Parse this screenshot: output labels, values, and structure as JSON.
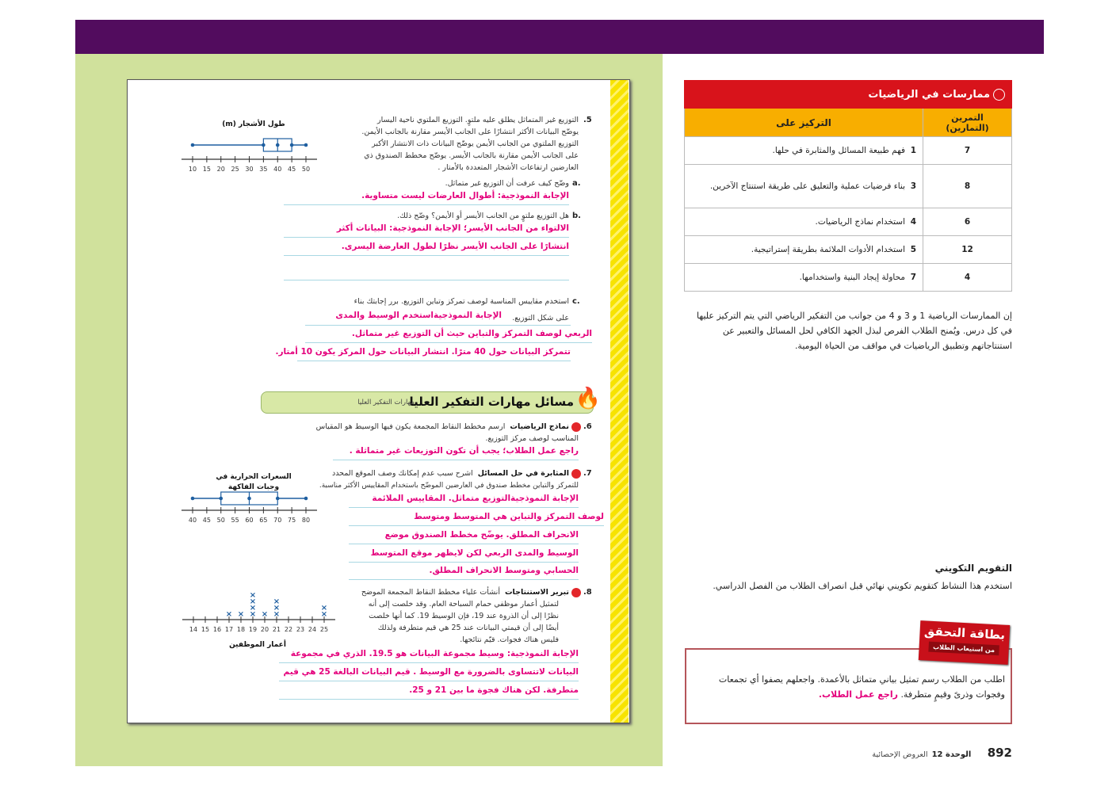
{
  "student_page": {
    "q5": {
      "num": ".5",
      "lines": [
        "التوزيع غير المتماثل يطلق عليه ملتوٍ. التوزيع الملتوي ناحية اليسار",
        "يوضّح البيانات الأكثر انتشارًا على الجانب الأيسر مقارنة بالجانب الأيمن.",
        "التوزيع الملتوي من الجانب الأيمن يوضّح البيانات ذات الانتشار الأكبر",
        "على الجانب الأيمن مقارنة بالجانب الأيسر. يوضّح مخطط الصندوق ذي",
        "العارضين ارتفاعات الأشجار المتعددة بالأمتار ."
      ],
      "a": {
        "label": "a.",
        "text": "وضّح كيف عرفت أن التوزيع غير متماثل.",
        "answer": "الإجابة النموذجية: أطوال العارضات ليست متساوية."
      },
      "b": {
        "label": "b.",
        "text": "هل التوزيع ملتوٍ من الجانب الأيسر أو الأيمن؟ وضّح ذلك.",
        "answers": [
          "الالتواء من الجانب الأيسر؛ الإجابة النموذجية: البيانات أكثر",
          "انتشارًا على الجانب الأيسر نظرًا لطول العارضة اليسرى."
        ]
      },
      "c": {
        "label": "c.",
        "text1": "استخدم مقاييس المناسبة لوصف تمركز وتباين التوزيع. برر إجابتك بناء",
        "text2": "على شكل التوزيع.",
        "answers": [
          "الإجابة النموذجيةاستخدم الوسيط والمدى",
          "الربعي لوصف التمركز والتباين حيث أن التوزيع غير متماثل.",
          "تتمركز البيانات حول 40 مترًا. انتشار البيانات حول المركز يكون 10 أمتار."
        ]
      }
    },
    "hots": {
      "title": "مسائل مهارات التفكير العليا",
      "subtitle": "مهارات التفكير العليا",
      "icon": "flame-icon"
    },
    "q6": {
      "num": ".6",
      "tag": "نماذج الرياضيات",
      "lines": [
        "ارسم مخطط النقاط المجمعة يكون فيها الوسيط هو المقياس",
        "المناسب لوصف مركز التوزيع."
      ],
      "answer": "راجع عمل الطلاب؛ يجب أن تكون التوزيعات غير متماثلة ."
    },
    "q7": {
      "num": ".7",
      "tag": "المثابرة في حل المسائل",
      "lines": [
        "اشرح سبب عدم إمكانك وصف الموقع المحدد",
        "للتمركز والتباين مخطط صندوق في العارضين الموضّح باستخدام المقاييس الأكثر مناسبة."
      ],
      "answers": [
        "الإجابة النموذجيةالتوزيع متماثل. المقاييس الملائمة",
        "لوصف التمركز والتباين هي المتوسط ومتوسط",
        "الانحراف المطلق. يوضّح مخطط الصندوق موضع",
        "الوسيط والمدى الربعي لكن لايظهر موقع المتوسط",
        "الحسابي ومتوسط الانحراف المطلق."
      ]
    },
    "q8": {
      "num": ".8",
      "tag": "تبرير الاستنتاجات",
      "lines": [
        "أنشأت علياء مخطط النقاط المجمعة الموضح",
        "لتمثيل أعمار موظفي حمام السباحة العام. وقد خلصت إلى أنه",
        "نظرًا إلى أن الذروة عند 19، فإن الوسيط 19. كما أنها خلصت",
        "أيضًا إلى أن قيمتي البيانات عند 25 هي قيم متطرفة ولذلك",
        "فليس هناك فجوات. قيّم نتائجها."
      ],
      "answers": [
        "الإجابة النموذجية: وسيط مجموعة البيانات هو 19.5. الذري في مجموعة",
        "البيانات لاتتساوى بالضرورة مع الوسيط . قيم البيانات البالغة 25 هي قيم",
        "متطرفة. لكن هناك فجوة ما بين 21 و 25."
      ]
    },
    "figures": [
      {
        "type": "boxplot",
        "title": "طول الأشجار (m)",
        "min": 10,
        "q1": 35,
        "median": 40,
        "q3": 45,
        "max": 50,
        "axis": [
          10,
          50
        ],
        "step": 5
      },
      {
        "type": "boxplot",
        "title": [
          "السعرات الحرارية في",
          "وجبات الفاكهة"
        ],
        "min": 40,
        "q1": 50,
        "median": 60,
        "q3": 70,
        "max": 80,
        "axis": [
          40,
          80
        ],
        "step": 5
      },
      {
        "type": "dotplot",
        "title": "أعمار الموظفين",
        "axis": [
          14,
          25
        ],
        "step": 1,
        "counts": {
          "17": 1,
          "18": 1,
          "19": 4,
          "20": 1,
          "21": 3,
          "25": 2
        }
      }
    ]
  },
  "practices": {
    "title": "ممارسات في الرياضيات",
    "col_focus": "التركيز على",
    "col_exercise": "التمرين (التمارين)",
    "rows": [
      {
        "n": "1",
        "focus": "فهم طبيعة المسائل والمثابرة في حلها.",
        "ex": "7"
      },
      {
        "n": "3",
        "focus": "بناء فرضيات عملية والتعليق على طريقة استنتاج الآخرين.",
        "ex": "8"
      },
      {
        "n": "4",
        "focus": "استخدام نماذج الرياضيات.",
        "ex": "6"
      },
      {
        "n": "5",
        "focus": "استخدام الأدوات الملائمة بطريقة إستراتيجية.",
        "ex": "12"
      },
      {
        "n": "7",
        "focus": "محاولة إيجاد البنية واستخدامها.",
        "ex": "4"
      }
    ],
    "paragraph": "إن الممارسات الرياضية 1 و 3 و 4 من جوانب من التفكير الرياضي التي يتم التركيز عليها في كل درس. ويُمنح الطلاب الفرص لبذل الجهد الكافي لحل المسائل والتعبير عن استنتاجاتهم وتطبيق الرياضيات في مواقف من الحياة اليومية."
  },
  "formative": {
    "title": "التقويم التكويني",
    "text": "استخدم هذا النشاط كتقويم تكويني نهائي قبل انصراف الطلاب من الفصل الدراسي."
  },
  "ticket": {
    "title": "بطاقة التحقق",
    "subtitle": "من استيعاب الطلاب",
    "text": "اطلب من الطلاب رسم تمثيل بياني متماثل بالأعمدة. واجعلهم يصفوا أي تجمعات وفجوات وذرىً وقيمٍ متطرفة.",
    "answer": "راجع عمل الطلاب."
  },
  "footer": {
    "page": "892",
    "unit": "الوحدة 12",
    "unit_title": "العروض الإحصائية"
  },
  "colors": {
    "purple": "#520c5e",
    "green": "#d0e19c",
    "red": "#d8131b",
    "orange": "#f8ae00",
    "answer_pink": "#e4007c",
    "plot_blue": "#1f5fa0"
  }
}
